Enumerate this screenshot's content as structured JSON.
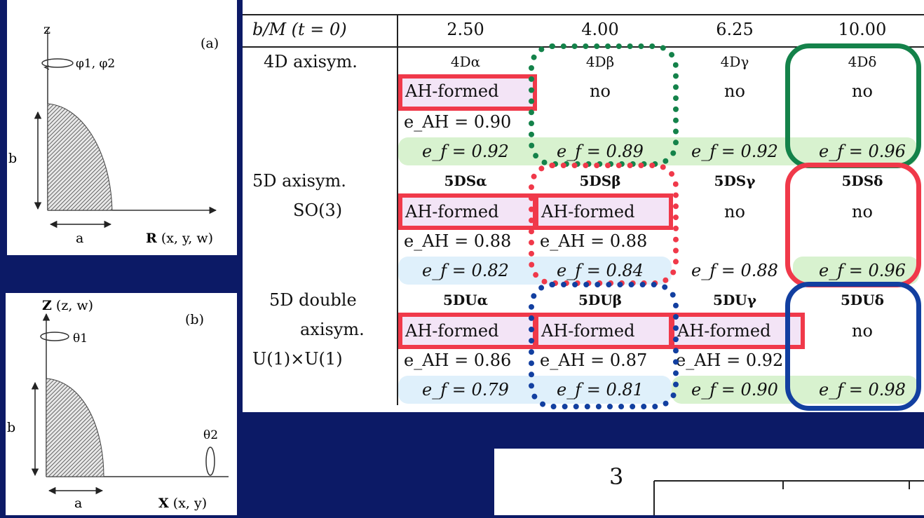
{
  "diagram_a": {
    "axis_z": "z",
    "panel_label": "(a)",
    "rotation_label": "φ1, φ2",
    "dim_b": "b",
    "dim_a": "a",
    "axis_r_bold": "R",
    "axis_r_rest": " (x, y, w)"
  },
  "diagram_b": {
    "axis_z_bold": "Z",
    "axis_z_rest": " (z, w)",
    "panel_label": "(b)",
    "rotation_1": "θ1",
    "rotation_2": "θ2",
    "dim_b": "b",
    "dim_a": "a",
    "axis_x_bold": "X",
    "axis_x_rest": " (x, y)"
  },
  "table": {
    "header_label": "b/M (t = 0)",
    "columns": [
      "2.50",
      "4.00",
      "6.25",
      "10.00"
    ],
    "groups": [
      {
        "label_lines": [
          "4D axisym."
        ],
        "codes": [
          "4Dα",
          "4Dβ",
          "4Dγ",
          "4Dδ"
        ],
        "status": [
          "AH-formed",
          "no",
          "no",
          "no"
        ],
        "e_ah": [
          "e_AH = 0.90",
          "",
          "",
          ""
        ],
        "e_f": [
          "e_f = 0.92",
          "e_f = 0.89",
          "e_f = 0.92",
          "e_f = 0.96"
        ]
      },
      {
        "label_lines": [
          "5D axisym.",
          "SO(3)"
        ],
        "codes": [
          "5DSα",
          "5DSβ",
          "5DSγ",
          "5DSδ"
        ],
        "status": [
          "AH-formed",
          "AH-formed",
          "no",
          "no"
        ],
        "e_ah": [
          "e_AH = 0.88",
          "e_AH = 0.88",
          "",
          ""
        ],
        "e_f": [
          "e_f = 0.82",
          "e_f = 0.84",
          "e_f = 0.88",
          "e_f = 0.96"
        ]
      },
      {
        "label_lines": [
          "5D double",
          "axisym.",
          "U(1)×U(1)"
        ],
        "codes": [
          "5DUα",
          "5DUβ",
          "5DUγ",
          "5DUδ"
        ],
        "status": [
          "AH-formed",
          "AH-formed",
          "AH-formed",
          "no"
        ],
        "e_ah": [
          "e_AH = 0.86",
          "e_AH = 0.87",
          "e_AH = 0.92",
          ""
        ],
        "e_f": [
          "e_f = 0.79",
          "e_f = 0.81",
          "e_f = 0.90",
          "e_f = 0.98"
        ]
      }
    ]
  },
  "plot": {
    "y_tick_top": "3"
  },
  "colors": {
    "background": "#0c1a66",
    "red": "#f0394a",
    "green": "#14824a",
    "blue": "#123fa0",
    "highlight_green": "#d8f2cf",
    "highlight_blue": "#dff0fb",
    "highlight_pink": "#f3e4f6"
  }
}
